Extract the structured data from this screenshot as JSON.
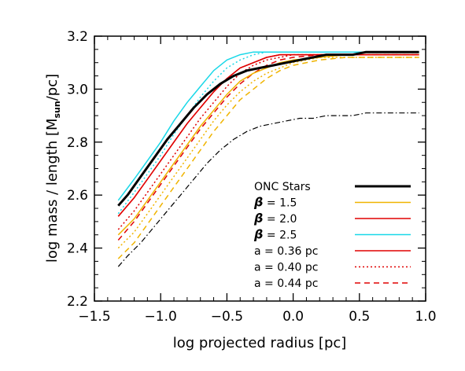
{
  "chart_data": {
    "type": "line",
    "xlabel": "log projected radius [pc]",
    "ylabel_main": "log mass / length [M",
    "ylabel_sub": "sun",
    "ylabel_end": "/pc]",
    "xlim": [
      -1.5,
      1.0
    ],
    "ylim": [
      2.2,
      3.2
    ],
    "xticks": [
      "−1.5",
      "−1.0",
      "−0.5",
      "0.0",
      "0.5",
      "1.0"
    ],
    "yticks": [
      "2.2",
      "2.4",
      "2.6",
      "2.8",
      "3.0",
      "3.2"
    ],
    "grid": false,
    "legend_position": "lower-right",
    "series": [
      {
        "name": "ONC Stars",
        "color": "#000000",
        "style": "solid-thick",
        "x": [
          -1.32,
          -1.25,
          -1.15,
          -1.05,
          -0.95,
          -0.85,
          -0.75,
          -0.65,
          -0.55,
          -0.45,
          -0.35,
          -0.25,
          -0.15,
          -0.05,
          0.05,
          0.15,
          0.25,
          0.35,
          0.45,
          0.55,
          0.65,
          0.75,
          0.85,
          0.95
        ],
        "y": [
          2.56,
          2.6,
          2.67,
          2.74,
          2.81,
          2.87,
          2.93,
          2.98,
          3.02,
          3.05,
          3.07,
          3.08,
          3.09,
          3.1,
          3.11,
          3.12,
          3.13,
          3.13,
          3.13,
          3.14,
          3.14,
          3.14,
          3.14,
          3.14
        ]
      },
      {
        "name": "β = 1.5",
        "color": "#f0b400",
        "style": "solid",
        "x": [
          -1.32,
          -1.2,
          -1.1,
          -1.0,
          -0.9,
          -0.8,
          -0.7,
          -0.6,
          -0.5,
          -0.4,
          -0.3,
          -0.2,
          -0.1,
          0.0,
          0.2,
          0.4,
          0.6,
          0.8,
          0.95
        ],
        "y": [
          2.45,
          2.51,
          2.58,
          2.65,
          2.72,
          2.79,
          2.86,
          2.92,
          2.98,
          3.03,
          3.06,
          3.08,
          3.1,
          3.11,
          3.12,
          3.13,
          3.13,
          3.13,
          3.13
        ]
      },
      {
        "name": "β = 2.0",
        "color": "#e00000",
        "style": "solid",
        "x": [
          -1.32,
          -1.2,
          -1.1,
          -1.0,
          -0.9,
          -0.8,
          -0.7,
          -0.6,
          -0.5,
          -0.4,
          -0.3,
          -0.2,
          -0.1,
          0.0,
          0.2,
          0.4,
          0.6,
          0.8,
          0.95
        ],
        "y": [
          2.52,
          2.59,
          2.66,
          2.73,
          2.8,
          2.87,
          2.93,
          2.99,
          3.04,
          3.08,
          3.1,
          3.12,
          3.13,
          3.13,
          3.13,
          3.13,
          3.13,
          3.13,
          3.13
        ]
      },
      {
        "name": "β = 2.5",
        "color": "#19d8e8",
        "style": "solid",
        "x": [
          -1.32,
          -1.2,
          -1.1,
          -1.0,
          -0.9,
          -0.8,
          -0.7,
          -0.6,
          -0.5,
          -0.4,
          -0.3,
          -0.2,
          -0.1,
          0.0,
          0.2,
          0.4,
          0.6,
          0.8,
          0.95
        ],
        "y": [
          2.58,
          2.66,
          2.73,
          2.8,
          2.88,
          2.95,
          3.01,
          3.07,
          3.11,
          3.13,
          3.14,
          3.14,
          3.14,
          3.14,
          3.14,
          3.14,
          3.14,
          3.14,
          3.14
        ]
      },
      {
        "name": "a = 0.36 pc",
        "color": "#e00000",
        "style": "solid",
        "x": [
          -1.32,
          -1.2,
          -1.1,
          -1.0,
          -0.9,
          -0.8,
          -0.7,
          -0.6,
          -0.5,
          -0.4,
          -0.3,
          -0.2,
          -0.1,
          0.0,
          0.2,
          0.4,
          0.6,
          0.8,
          0.95
        ],
        "y": [
          2.52,
          2.59,
          2.66,
          2.73,
          2.8,
          2.87,
          2.93,
          2.99,
          3.04,
          3.08,
          3.1,
          3.12,
          3.13,
          3.13,
          3.13,
          3.13,
          3.13,
          3.13,
          3.13
        ]
      },
      {
        "name": "a = 0.40 pc",
        "color": "#e00000",
        "style": "dotted",
        "x": [
          -1.32,
          -1.2,
          -1.1,
          -1.0,
          -0.9,
          -0.8,
          -0.7,
          -0.6,
          -0.5,
          -0.4,
          -0.3,
          -0.2,
          -0.1,
          0.0,
          0.2,
          0.4,
          0.6,
          0.8,
          0.95
        ],
        "y": [
          2.47,
          2.54,
          2.61,
          2.68,
          2.75,
          2.82,
          2.89,
          2.95,
          3.01,
          3.06,
          3.09,
          3.11,
          3.12,
          3.13,
          3.13,
          3.13,
          3.13,
          3.13,
          3.13
        ]
      },
      {
        "name": "a = 0.44 pc",
        "color": "#e00000",
        "style": "dashed",
        "x": [
          -1.32,
          -1.2,
          -1.1,
          -1.0,
          -0.9,
          -0.8,
          -0.7,
          -0.6,
          -0.5,
          -0.4,
          -0.3,
          -0.2,
          -0.1,
          0.0,
          0.2,
          0.4,
          0.6,
          0.8,
          0.95
        ],
        "y": [
          2.43,
          2.5,
          2.57,
          2.64,
          2.71,
          2.78,
          2.85,
          2.91,
          2.97,
          3.02,
          3.06,
          3.09,
          3.11,
          3.12,
          3.13,
          3.13,
          3.13,
          3.13,
          3.13
        ]
      },
      {
        "name": "",
        "color": "#f0b400",
        "style": "dotted",
        "x": [
          -1.32,
          -1.2,
          -1.1,
          -1.0,
          -0.9,
          -0.8,
          -0.7,
          -0.6,
          -0.5,
          -0.4,
          -0.3,
          -0.2,
          -0.1,
          0.0,
          0.2,
          0.4,
          0.6,
          0.8,
          0.95
        ],
        "y": [
          2.4,
          2.46,
          2.53,
          2.6,
          2.67,
          2.74,
          2.81,
          2.88,
          2.94,
          2.99,
          3.03,
          3.06,
          3.08,
          3.1,
          3.12,
          3.12,
          3.12,
          3.12,
          3.12
        ]
      },
      {
        "name": "",
        "color": "#f0b400",
        "style": "dashed",
        "x": [
          -1.32,
          -1.2,
          -1.1,
          -1.0,
          -0.9,
          -0.8,
          -0.7,
          -0.6,
          -0.5,
          -0.4,
          -0.3,
          -0.2,
          -0.1,
          0.0,
          0.2,
          0.4,
          0.6,
          0.8,
          0.95
        ],
        "y": [
          2.36,
          2.42,
          2.49,
          2.56,
          2.63,
          2.7,
          2.77,
          2.84,
          2.9,
          2.96,
          3.0,
          3.04,
          3.07,
          3.09,
          3.11,
          3.12,
          3.12,
          3.12,
          3.12
        ]
      },
      {
        "name": "",
        "color": "#19d8e8",
        "style": "dotted",
        "x": [
          -1.32,
          -1.2,
          -1.1,
          -1.0,
          -0.9,
          -0.8,
          -0.7,
          -0.6,
          -0.5,
          -0.4,
          -0.3,
          -0.2,
          -0.1,
          0.0,
          0.2,
          0.4,
          0.6,
          0.8,
          0.95
        ],
        "y": [
          2.53,
          2.61,
          2.68,
          2.75,
          2.83,
          2.9,
          2.97,
          3.03,
          3.08,
          3.11,
          3.13,
          3.14,
          3.14,
          3.14,
          3.14,
          3.14,
          3.14,
          3.14,
          3.14
        ]
      },
      {
        "name": "",
        "color": "#000000",
        "style": "dashdot",
        "x": [
          -1.32,
          -1.25,
          -1.15,
          -1.05,
          -0.95,
          -0.85,
          -0.75,
          -0.65,
          -0.55,
          -0.45,
          -0.35,
          -0.25,
          -0.15,
          -0.05,
          0.05,
          0.15,
          0.25,
          0.35,
          0.45,
          0.55,
          0.65,
          0.75,
          0.85,
          0.95
        ],
        "y": [
          2.33,
          2.37,
          2.42,
          2.48,
          2.54,
          2.6,
          2.66,
          2.72,
          2.77,
          2.81,
          2.84,
          2.86,
          2.87,
          2.88,
          2.89,
          2.89,
          2.9,
          2.9,
          2.9,
          2.91,
          2.91,
          2.91,
          2.91,
          2.91
        ]
      }
    ],
    "legend": [
      {
        "label": "ONC Stars",
        "color": "#000000",
        "style": "solid-thick"
      },
      {
        "prefix": "β",
        "label": " = 1.5",
        "color": "#f0b400",
        "style": "solid"
      },
      {
        "prefix": "β",
        "label": " = 2.0",
        "color": "#e00000",
        "style": "solid"
      },
      {
        "prefix": "β",
        "label": " = 2.5",
        "color": "#19d8e8",
        "style": "solid"
      },
      {
        "label": "a = 0.36 pc",
        "color": "#e00000",
        "style": "solid"
      },
      {
        "label": "a = 0.40 pc",
        "color": "#e00000",
        "style": "dotted"
      },
      {
        "label": "a = 0.44 pc",
        "color": "#e00000",
        "style": "dashed"
      }
    ]
  }
}
